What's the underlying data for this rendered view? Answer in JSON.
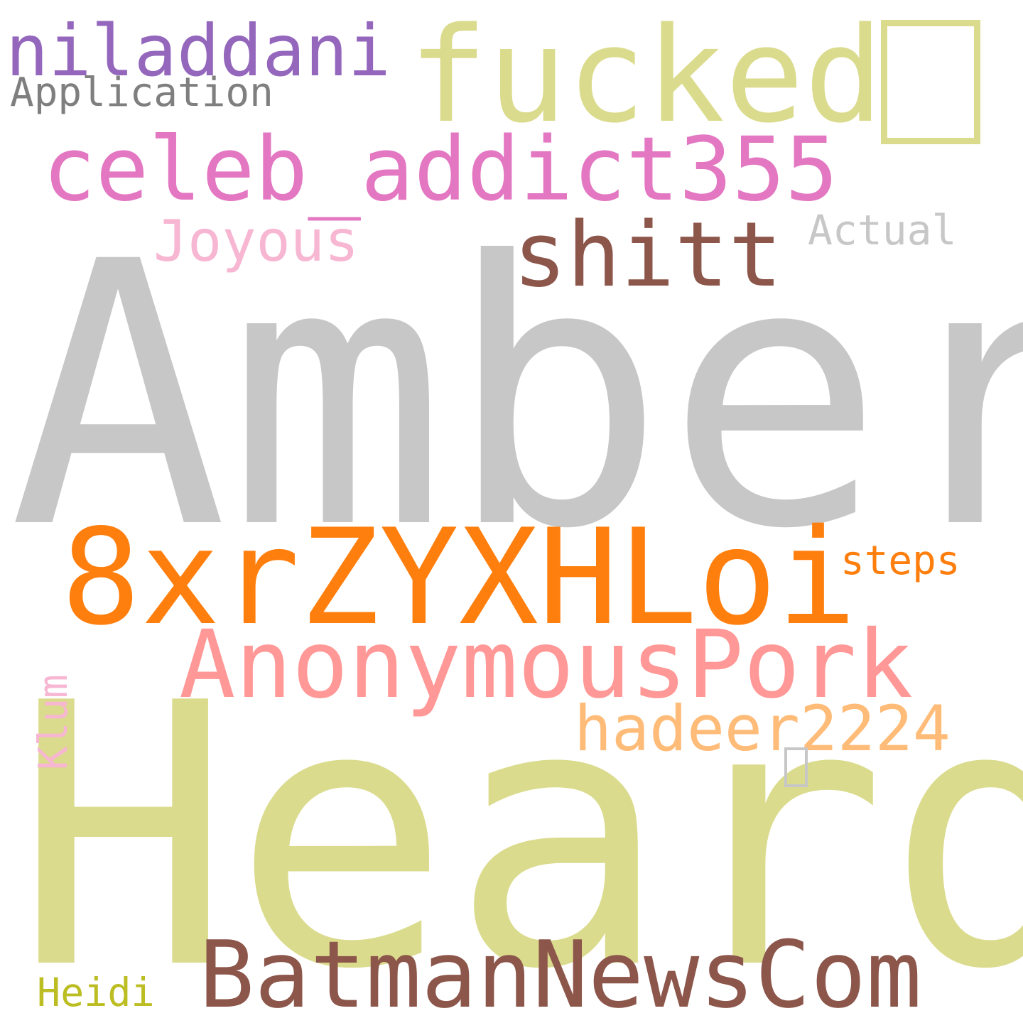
{
  "words": [
    {
      "key": "amber",
      "text": "Amber",
      "color": "#c7c7c7"
    },
    {
      "key": "heard",
      "text": "Heard",
      "color": "#dbdb8d"
    },
    {
      "key": "fucked",
      "text": "fucked",
      "color": "#dbdb8d"
    },
    {
      "key": "celeb",
      "text": "celeb_addict355",
      "color": "#e377c2"
    },
    {
      "key": "niladdani",
      "text": "niladdani",
      "color": "#9467bd"
    },
    {
      "key": "application",
      "text": "Application",
      "color": "#7f7f7f"
    },
    {
      "key": "shitt",
      "text": "shitt",
      "color": "#8c564b"
    },
    {
      "key": "joyous",
      "text": "Joyous",
      "color": "#f7b6d2"
    },
    {
      "key": "actual",
      "text": "Actual",
      "color": "#c7c7c7"
    },
    {
      "key": "code",
      "text": "8xrZYXHLoi",
      "color": "#ff7f0e"
    },
    {
      "key": "steps",
      "text": "steps",
      "color": "#ff7f0e"
    },
    {
      "key": "anonymouspork",
      "text": "AnonymousPork",
      "color": "#ff9896"
    },
    {
      "key": "hadeer",
      "text": "hadeer2224",
      "color": "#ffbb78"
    },
    {
      "key": "klum",
      "text": "Klum",
      "color": "#f7b6d2"
    },
    {
      "key": "batman",
      "text": "BatmanNewsCom",
      "color": "#8c564b"
    },
    {
      "key": "heidi",
      "text": "Heidi",
      "color": "#bcbd22"
    }
  ],
  "glyph_boxes": [
    {
      "key": "fucked-glyph",
      "color": "#dbdb8d"
    },
    {
      "key": "small-glyph",
      "color": "#c7c7c7"
    }
  ]
}
